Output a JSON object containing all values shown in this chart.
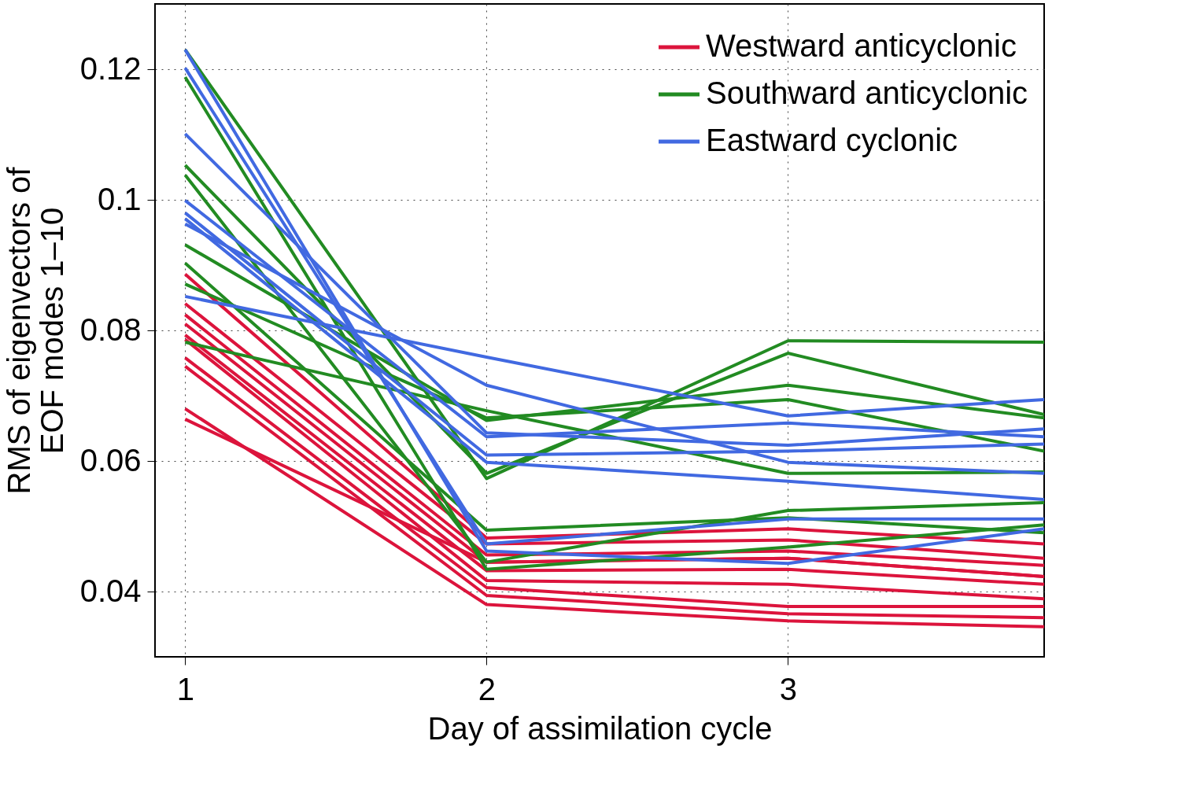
{
  "chart_data": {
    "type": "line",
    "xlabel": "Day of assimilation cycle",
    "ylabel": "RMS of eigenvectors of EOF modes 1–10",
    "xlim": [
      0.9,
      3.85
    ],
    "xticks": [
      1,
      2,
      3
    ],
    "ylim": [
      0.03,
      0.13
    ],
    "yticks": [
      0.04,
      0.06,
      0.08,
      {
        "value": 0.1,
        "label": "0.1"
      },
      0.12
    ],
    "grid": true,
    "legend": "top right",
    "line_style": "solid",
    "marker": "none",
    "x": [
      1,
      2,
      3,
      3.85
    ],
    "series": [
      {
        "name": "Westward anticyclonic",
        "color": "#dc143c",
        "values": [
          0.0886,
          0.0482,
          0.0496,
          0.0473
        ]
      },
      {
        "color": "#dc143c",
        "values": [
          0.0841,
          0.0473,
          0.0479,
          0.0451
        ]
      },
      {
        "color": "#dc143c",
        "values": [
          0.0824,
          0.0456,
          0.0462,
          0.044
        ]
      },
      {
        "color": "#dc143c",
        "values": [
          0.081,
          0.0445,
          0.0451,
          0.0423
        ]
      },
      {
        "color": "#dc143c",
        "values": [
          0.0793,
          0.0432,
          0.0434,
          0.0411
        ]
      },
      {
        "color": "#dc143c",
        "values": [
          0.0786,
          0.0417,
          0.0411,
          0.0389
        ]
      },
      {
        "color": "#dc143c",
        "values": [
          0.0758,
          0.0406,
          0.0377,
          0.0377
        ]
      },
      {
        "color": "#dc143c",
        "values": [
          0.0745,
          0.0394,
          0.0366,
          0.036
        ]
      },
      {
        "color": "#dc143c",
        "values": [
          0.068,
          0.038,
          0.0355,
          0.0346
        ]
      },
      {
        "color": "#dc143c",
        "values": [
          0.0664,
          0.0445,
          0.0451,
          0.0423
        ]
      },
      {
        "name": "Southward anticyclonic",
        "color": "#228b22",
        "values": [
          0.123,
          0.0573,
          0.0784,
          0.0782
        ]
      },
      {
        "color": "#228b22",
        "values": [
          0.1188,
          0.0434,
          0.0468,
          0.0502
        ]
      },
      {
        "color": "#228b22",
        "values": [
          0.1053,
          0.0581,
          0.0765,
          0.0671
        ]
      },
      {
        "color": "#228b22",
        "values": [
          0.1038,
          0.0445,
          0.0524,
          0.0536
        ]
      },
      {
        "color": "#228b22",
        "values": [
          0.0931,
          0.0662,
          0.0716,
          0.0666
        ]
      },
      {
        "color": "#228b22",
        "values": [
          0.0903,
          0.0494,
          0.0513,
          0.049
        ]
      },
      {
        "color": "#228b22",
        "values": [
          0.0871,
          0.0666,
          0.0694,
          0.0615
        ]
      },
      {
        "color": "#228b22",
        "values": [
          0.0782,
          0.0677,
          0.0581,
          0.0583
        ]
      },
      {
        "name": "Eastward cyclonic",
        "color": "#4169e1",
        "values": [
          0.123,
          0.0462,
          0.0443,
          0.0496
        ]
      },
      {
        "color": "#4169e1",
        "values": [
          0.1202,
          0.0473,
          0.0511,
          0.0511
        ]
      },
      {
        "color": "#4169e1",
        "values": [
          0.1101,
          0.0643,
          0.0624,
          0.0649
        ]
      },
      {
        "color": "#4169e1",
        "values": [
          0.0999,
          0.0637,
          0.0658,
          0.0637
        ]
      },
      {
        "color": "#4169e1",
        "values": [
          0.098,
          0.0609,
          0.0615,
          0.0626
        ]
      },
      {
        "color": "#4169e1",
        "values": [
          0.0971,
          0.0598,
          0.0569,
          0.0541
        ]
      },
      {
        "color": "#4169e1",
        "values": [
          0.0963,
          0.0716,
          0.0598,
          0.0581
        ]
      },
      {
        "color": "#4169e1",
        "values": [
          0.0852,
          0.0759,
          0.0669,
          0.0694
        ]
      }
    ]
  }
}
